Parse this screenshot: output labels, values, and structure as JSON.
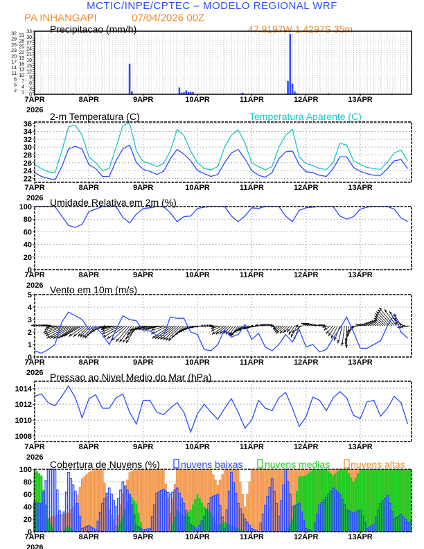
{
  "header": {
    "title": "MCTIC/INPE/CPTEC – MODELO REGIONAL WRF",
    "location": "PA INHANGAPI",
    "run": "07/04/2026 00Z",
    "coords": "47.9197W 1.4297S 35m"
  },
  "colors": {
    "blue": "#2d4bff",
    "cyan": "#1ec4c4",
    "orange": "#f08a2e",
    "orange_fill": "#f6a466",
    "green": "#22cc22",
    "grid": "#999999"
  },
  "x_axis": {
    "day_labels": [
      "7APR",
      "8APR",
      "9APR",
      "10APR",
      "11APR",
      "12APR",
      "13APR"
    ],
    "year": "2026",
    "hours_step": 3
  },
  "chart_data": [
    {
      "type": "bar",
      "title": "Precipitacao (mm/h)",
      "ylim": [
        0,
        33
      ],
      "yticks": [
        0,
        1,
        2,
        3,
        4,
        5,
        6,
        7,
        8,
        9,
        10,
        11,
        12,
        13,
        14,
        15,
        16,
        17,
        18,
        19,
        20,
        21,
        22,
        23,
        24,
        25,
        26,
        27,
        28,
        29,
        30,
        31,
        32,
        33
      ],
      "grid": true,
      "points": [
        {
          "hour": 17,
          "value": 0.4
        },
        {
          "hour": 42,
          "value": 16
        },
        {
          "hour": 43,
          "value": 1.5
        },
        {
          "hour": 64,
          "value": 3.5
        },
        {
          "hour": 65,
          "value": 0.8
        },
        {
          "hour": 66,
          "value": 1
        },
        {
          "hour": 67,
          "value": 2
        },
        {
          "hour": 68,
          "value": 1.2
        },
        {
          "hour": 69,
          "value": 1.2
        },
        {
          "hour": 70,
          "value": 1.2
        },
        {
          "hour": 91,
          "value": 0.5
        },
        {
          "hour": 92,
          "value": 0.8
        },
        {
          "hour": 112,
          "value": 7
        },
        {
          "hour": 113,
          "value": 31.5
        },
        {
          "hour": 114,
          "value": 5.5
        },
        {
          "hour": 115,
          "value": 1.5
        },
        {
          "hour": 116,
          "value": 0.5
        },
        {
          "hour": 130,
          "value": 0.5
        },
        {
          "hour": 144,
          "value": 0.4
        },
        {
          "hour": 158,
          "value": 0.4
        }
      ]
    },
    {
      "type": "line",
      "title": "2-m Temperatura (C)",
      "ylim": [
        21,
        36.4
      ],
      "yticks": [
        22,
        24,
        26,
        28,
        30,
        32,
        34,
        36
      ],
      "grid": true,
      "series": [
        {
          "name": "2-m Temperatura (C)",
          "color": "blue",
          "values": [
            23.5,
            22.5,
            22,
            21.6,
            25,
            29.5,
            30.2,
            29.5,
            25.5,
            24.5,
            22.5,
            22.5,
            26.5,
            29.5,
            30.5,
            26,
            24.3,
            23.8,
            23,
            23.8,
            27,
            29.4,
            28.2,
            26.5,
            24,
            23.2,
            22.5,
            23,
            26,
            28.5,
            29.4,
            27,
            24,
            22.8,
            22.3,
            23.5,
            27,
            28.8,
            29,
            25.5,
            23.7,
            23.5,
            22.8,
            22.5,
            24.5,
            27.5,
            27.5,
            24.8,
            23.8,
            23.2,
            22.8,
            22.8,
            24.5,
            26.5,
            26.8,
            24.5
          ]
        },
        {
          "name": "Temperatura Aparente (C)",
          "color": "cyan",
          "values": [
            25.5,
            24.5,
            23.7,
            23.4,
            29,
            35.2,
            35.6,
            33,
            27.5,
            26,
            24,
            24.5,
            30,
            35.5,
            36.2,
            29,
            26.3,
            25.8,
            25,
            25.8,
            29,
            34.5,
            33,
            29,
            26,
            24.5,
            24.2,
            25,
            30,
            33,
            34.4,
            31,
            26,
            25,
            24.2,
            25,
            30,
            33,
            34.5,
            27.5,
            25.8,
            25.3,
            24.5,
            24.3,
            26,
            31,
            30.5,
            26.5,
            25.5,
            24.8,
            24.5,
            24.3,
            26.2,
            28.5,
            29.2,
            26.5
          ]
        }
      ]
    },
    {
      "type": "line",
      "title": "Umidade Relativa em 2m (%)",
      "ylim": [
        0,
        100
      ],
      "yticks": [
        0,
        20,
        40,
        60,
        80,
        100
      ],
      "grid": true,
      "series": [
        {
          "color": "blue",
          "values": [
            100,
            100,
            100,
            100,
            85,
            70,
            67,
            72,
            92,
            96,
            100,
            100,
            100,
            83,
            74,
            88,
            97,
            98,
            100,
            100,
            90,
            76,
            84,
            85,
            97,
            99,
            100,
            100,
            100,
            85,
            76,
            85,
            98,
            97,
            100,
            100,
            100,
            85,
            76,
            94,
            98,
            99,
            100,
            100,
            100,
            85,
            80,
            84,
            96,
            99,
            100,
            100,
            100,
            96,
            82,
            76
          ]
        }
      ]
    },
    {
      "type": "line",
      "title": "Vento em 10m (m/s)",
      "ylim": [
        0,
        5
      ],
      "yticks": [
        0,
        1,
        2,
        3,
        4,
        5
      ],
      "grid": true,
      "series": [
        {
          "color": "blue",
          "values": [
            0.5,
            0.3,
            0.6,
            1.0,
            2.8,
            3.6,
            3.3,
            3.0,
            2.2,
            2.4,
            1.8,
            1.0,
            2.2,
            3.3,
            3.0,
            2.9,
            2.1,
            2.1,
            1.7,
            1.7,
            3.2,
            3.1,
            3.1,
            2.0,
            1.8,
            0.6,
            0.5,
            1.0,
            2.2,
            1.6,
            1.8,
            2.6,
            1.4,
            1.9,
            0.8,
            0.5,
            1.0,
            1.8,
            1.2,
            2.2,
            0.8,
            1.0,
            0.4,
            0.6,
            1.5,
            2.3,
            3.2,
            2.0,
            0.7,
            0.7,
            1.0,
            1.3,
            2.5,
            3.4,
            2.0,
            1.5
          ]
        }
      ],
      "wind_direction_deg": [
        95,
        95,
        90,
        85,
        70,
        60,
        55,
        60,
        45,
        40,
        60,
        80,
        75,
        60,
        40,
        30,
        70,
        75,
        70,
        80,
        55,
        50,
        45,
        60,
        75,
        80,
        85,
        80,
        55,
        45,
        35,
        60,
        70,
        80,
        100,
        110,
        60,
        50,
        40,
        20,
        120,
        110,
        100,
        90,
        40,
        20,
        0,
        30,
        100,
        110,
        125,
        130,
        135,
        140,
        150,
        80
      ]
    },
    {
      "type": "line",
      "title": "Pressao ao Nivel Medio do Mar (hPa)",
      "ylim": [
        1007.3,
        1014.9
      ],
      "yticks": [
        1008,
        1010,
        1012,
        1014
      ],
      "grid": true,
      "series": [
        {
          "color": "blue",
          "values": [
            1013,
            1013.3,
            1012.2,
            1011.8,
            1013,
            1014.3,
            1012.8,
            1010.3,
            1012.7,
            1013.2,
            1011.5,
            1011.5,
            1012.8,
            1013.3,
            1011,
            1009.5,
            1012.5,
            1012.5,
            1011,
            1010.7,
            1011.5,
            1012.2,
            1011,
            1008.5,
            1010.8,
            1012,
            1011,
            1010.1,
            1011.5,
            1012.7,
            1011,
            1009,
            1010,
            1012.5,
            1011.5,
            1011.2,
            1012.8,
            1013.5,
            1011.5,
            1009.2,
            1010.4,
            1012.9,
            1012.5,
            1011.2,
            1012.8,
            1013.6,
            1012.8,
            1010.6,
            1010.2,
            1012.3,
            1012.5,
            1010.5,
            1011.5,
            1013,
            1012.2,
            1009.5
          ]
        }
      ]
    },
    {
      "type": "bar",
      "title": "Cobertura de Nuvens (%)",
      "ylim": [
        0,
        100
      ],
      "yticks": [
        0,
        20,
        40,
        60,
        80,
        100
      ],
      "grid": true,
      "legend": "top",
      "series": [
        {
          "name": "nuvens altas",
          "color": "orange",
          "values": [
            0,
            10,
            22,
            25,
            28,
            30,
            45,
            85,
            95,
            100,
            100,
            35,
            10,
            60,
            95,
            100,
            100,
            100,
            100,
            100,
            30,
            100,
            100,
            100,
            100,
            100,
            100,
            75,
            100,
            100,
            100,
            40,
            100,
            100,
            100,
            100,
            100,
            100,
            100,
            100,
            100,
            100,
            100,
            100,
            100,
            100,
            100,
            100,
            100,
            100,
            100,
            100,
            100,
            100,
            100,
            100
          ]
        },
        {
          "name": "nuvens medias",
          "color": "green",
          "values": [
            100,
            90,
            20,
            0,
            0,
            8,
            0,
            0,
            0,
            0,
            0,
            0,
            0,
            25,
            60,
            45,
            0,
            0,
            0,
            0,
            0,
            35,
            25,
            35,
            60,
            40,
            30,
            10,
            15,
            10,
            5,
            0,
            0,
            0,
            0,
            0,
            0,
            0,
            20,
            88,
            90,
            100,
            100,
            100,
            90,
            100,
            100,
            80,
            100,
            100,
            100,
            100,
            100,
            100,
            100,
            100
          ]
        },
        {
          "name": "nuvens baixas",
          "color": "blue",
          "values": [
            47,
            45,
            100,
            100,
            0,
            95,
            65,
            5,
            10,
            3,
            45,
            70,
            40,
            80,
            60,
            10,
            3,
            5,
            62,
            68,
            60,
            70,
            45,
            12,
            3,
            25,
            55,
            60,
            5,
            95,
            45,
            20,
            5,
            0,
            42,
            85,
            25,
            100,
            40,
            45,
            5,
            0,
            43,
            55,
            70,
            60,
            35,
            30,
            35,
            5,
            12,
            45,
            58,
            20,
            28,
            15
          ]
        }
      ]
    }
  ]
}
